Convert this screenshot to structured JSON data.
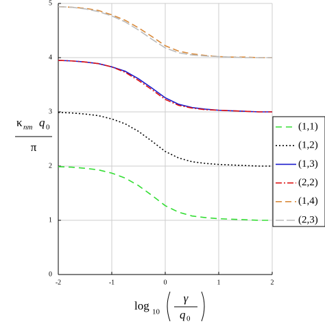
{
  "chart_data": {
    "type": "line",
    "y_label": {
      "kappa": "κ",
      "kappa_sub": "nm",
      "q": "q",
      "q_sub": "0",
      "denominator": "π"
    },
    "x_label": {
      "log": "log",
      "log_sub": "10",
      "numerator": "γ",
      "q": "q",
      "q_sub": "0"
    },
    "x": [
      -2,
      -1.75,
      -1.5,
      -1.25,
      -1,
      -0.75,
      -0.5,
      -0.25,
      0,
      0.25,
      0.5,
      0.75,
      1,
      1.25,
      1.5,
      1.75,
      2
    ],
    "series": [
      {
        "name": "(1,1)",
        "color": "#33dd33",
        "dash": "9,6",
        "values": [
          1.99,
          1.98,
          1.96,
          1.93,
          1.87,
          1.78,
          1.64,
          1.46,
          1.27,
          1.15,
          1.08,
          1.05,
          1.03,
          1.02,
          1.01,
          1.0,
          1.0
        ]
      },
      {
        "name": "(1,2)",
        "color": "#000000",
        "dash": "2,3",
        "values": [
          2.99,
          2.98,
          2.96,
          2.93,
          2.87,
          2.78,
          2.64,
          2.46,
          2.27,
          2.15,
          2.08,
          2.05,
          2.03,
          2.02,
          2.01,
          2.0,
          2.0
        ]
      },
      {
        "name": "(1,3)",
        "color": "#1a1acc",
        "dash": "none",
        "values": [
          3.95,
          3.94,
          3.92,
          3.89,
          3.83,
          3.75,
          3.61,
          3.44,
          3.26,
          3.14,
          3.08,
          3.05,
          3.03,
          3.02,
          3.01,
          3.0,
          3.0
        ]
      },
      {
        "name": "(2,2)",
        "color": "#dd1111",
        "dash": "9,3,2,3",
        "values": [
          3.95,
          3.94,
          3.92,
          3.89,
          3.83,
          3.73,
          3.58,
          3.41,
          3.23,
          3.12,
          3.07,
          3.04,
          3.03,
          3.02,
          3.01,
          3.0,
          3.0
        ]
      },
      {
        "name": "(1,4)",
        "color": "#d98a3a",
        "dash": "9,5",
        "values": [
          4.94,
          4.93,
          4.91,
          4.87,
          4.79,
          4.69,
          4.55,
          4.39,
          4.22,
          4.12,
          4.07,
          4.04,
          4.02,
          4.01,
          4.01,
          4.0,
          4.0
        ]
      },
      {
        "name": "(2,3)",
        "color": "#bbbbbb",
        "dash": "12,4",
        "values": [
          4.94,
          4.93,
          4.9,
          4.85,
          4.77,
          4.66,
          4.51,
          4.34,
          4.18,
          4.09,
          4.05,
          4.03,
          4.02,
          4.01,
          4.0,
          4.0,
          4.0
        ]
      }
    ],
    "xlim": [
      -2,
      2
    ],
    "ylim": [
      0,
      5
    ],
    "xticks": [
      -2,
      -1,
      0,
      1,
      2
    ],
    "yticks": [
      0,
      1,
      2,
      3,
      4,
      5
    ],
    "grid": true
  }
}
